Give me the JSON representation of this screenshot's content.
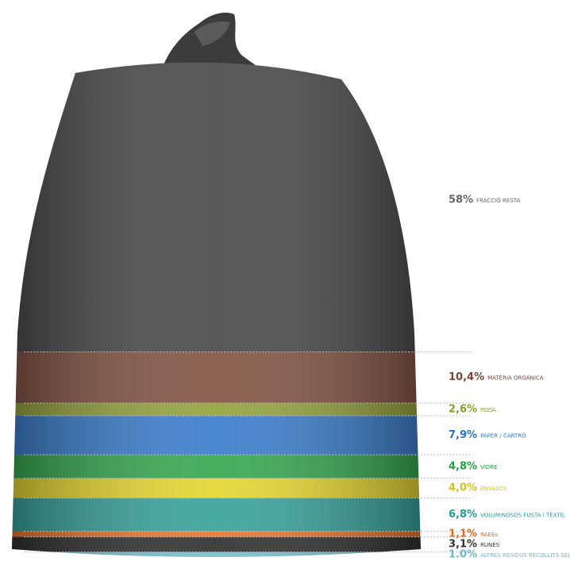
{
  "chart_data": {
    "type": "bag",
    "categories": [
      "FRACCIÓ RESTA",
      "MATÈRIA ORGÀNICA",
      "PODA",
      "PAPER / CARTRÓ",
      "VIDRE",
      "ENVASOS",
      "VOLUMINOSOS FUSTA I TÈXTIL",
      "RAEEs",
      "RUNES",
      "ALTRES RESIDUS RECOLLITS SELECTIVAMENT"
    ],
    "values": [
      58,
      10.4,
      2.6,
      7.9,
      4.8,
      4.0,
      6.8,
      1.1,
      3.1,
      1.0
    ],
    "value_labels": [
      "58%",
      "10,4%",
      "2,6%",
      "7,9%",
      "4,8%",
      "4,0%",
      "6,8%",
      "1,1%",
      "3,1%",
      "1.0%"
    ],
    "colors": [
      "#4a4a4a",
      "#7a4535",
      "#8c9a2e",
      "#2a72c8",
      "#25a040",
      "#e2d21e",
      "#279a92",
      "#e8691e",
      "#1e1e1e",
      "#70b8cc"
    ],
    "label_colors": [
      "#666666",
      "#7a4535",
      "#8c9a2e",
      "#2a72c8",
      "#25a040",
      "#d8c21a",
      "#279a92",
      "#e8691e",
      "#333333",
      "#70b8cc"
    ]
  }
}
